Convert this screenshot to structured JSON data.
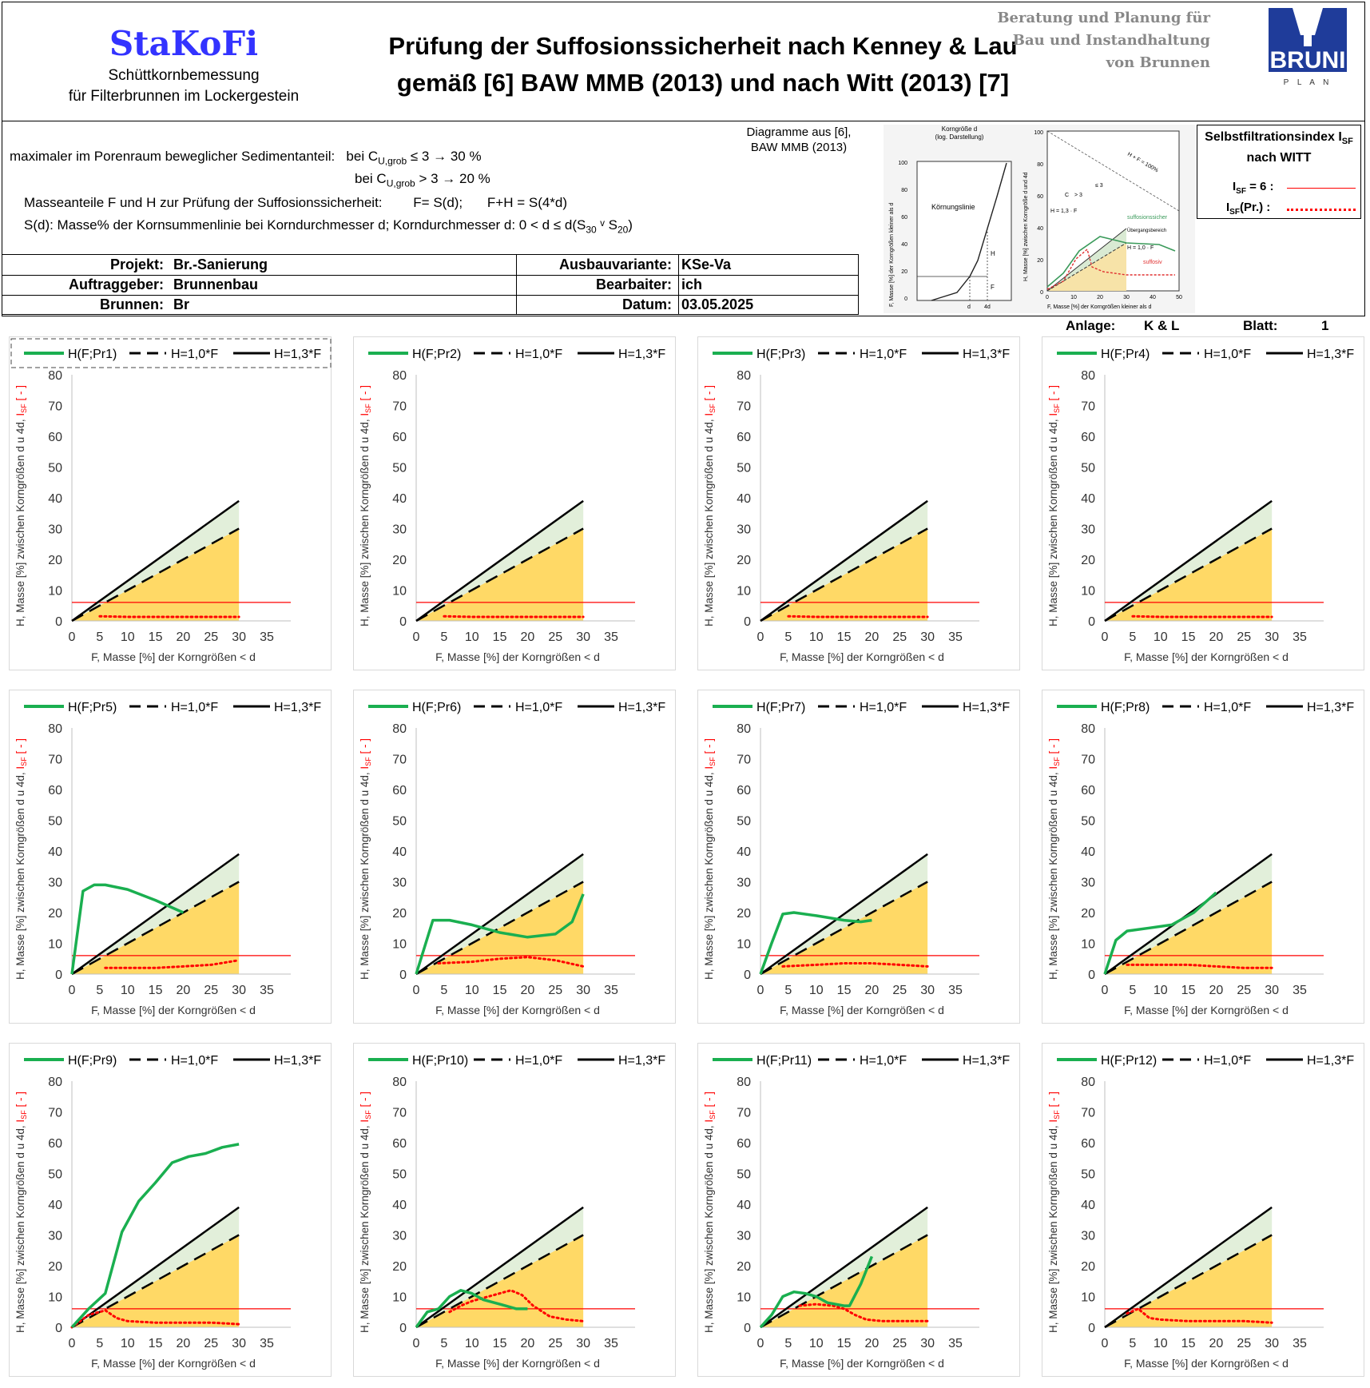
{
  "header": {
    "logo": "StaKoFi",
    "logo_sub1": "Schüttkornbemessung",
    "logo_sub2": "für Filterbrunnen im Lockergestein",
    "title_line1": "Prüfung der Suffosionssicherheit nach Kenney & Lau",
    "title_line2": "gemäß [6] BAW MMB (2013) und nach Witt (2013) [7]",
    "brand_line1": "Beratung und Planung für",
    "brand_line2": "Bau und Instandhaltung",
    "brand_line3": "von Brunnen",
    "brand_logo": "BRUNI",
    "brand_logo_sub": "P L A N"
  },
  "info": {
    "line1_a": "maximaler im Porenraum beweglicher Sedimentanteil:",
    "line1_b": "bei C",
    "line1_sub": "U,grob",
    "line1_c": "≤ 3 → 30 %",
    "line2_a": "bei C",
    "line2_sub": "U,grob",
    "line2_c": "> 3 → 20 %",
    "line3": "Masseanteile F und H zur Prüfung der Suffosionssicherheit:",
    "line3_b": "F= S(d);",
    "line3_c": "F+H = S(4*d)",
    "line4": "S(d): Masse% der Kornsummenlinie bei Korndurchmesser d;  Korndurchmesser d: 0 < d ≤ d(S",
    "line4_s1": "30",
    "line4_mid": " ᵛ S",
    "line4_s2": "20",
    "line4_end": ")",
    "diag_caption1": "Diagramme aus [6],",
    "diag_caption2": "BAW MMB (2013)"
  },
  "reference_diagrams": {
    "left": {
      "top_label1": "Korngröße d",
      "top_label2": "(log. Darstellung)",
      "curve_label": "Körnungslinie",
      "yaxis": "F, Masse [%] der Korngrößen kleiner als d",
      "ticks": [
        "100",
        "80",
        "60",
        "40",
        "20",
        "0"
      ],
      "bottom": [
        "d",
        "4d"
      ],
      "h": "H",
      "f": "F"
    },
    "right": {
      "ticks_y": [
        "100",
        "80",
        "60",
        "40",
        "20",
        "0"
      ],
      "ticks_x": [
        "0",
        "10",
        "20",
        "30",
        "40",
        "50"
      ],
      "xaxis": "F, Masse [%] der Korngrößen kleiner als d",
      "yaxis": "H, Masse [%] zwischen Korngröße d und 4d",
      "hf": "H + F = 100%",
      "cu1": "C",
      "cu2": "> 3",
      "cu3": "≤ 3",
      "h13": "H = 1,3 · F",
      "h10": "H = 1,0 · F",
      "sicher": "suffosionssicher",
      "ueber": "Übergangsbereich",
      "suff": "suffosiv"
    }
  },
  "witt": {
    "title": "Selbstfiltrationsindex  I",
    "title_sub": "SF",
    "title2": "nach WITT",
    "row1": "I",
    "row1_sub": "SF",
    "row1_b": " = 6 :",
    "row2": "I",
    "row2_sub": "SF",
    "row2_b": "(Pr.) :"
  },
  "project": {
    "projekt_label": "Projekt:",
    "projekt": "Br.-Sanierung",
    "auftraggeber_label": "Auftraggeber:",
    "auftraggeber": "Brunnenbau",
    "brunnen_label": "Brunnen:",
    "brunnen": "Br",
    "ausbau_label": "Ausbauvariante:",
    "ausbau": "KSe-Va",
    "bearbeiter_label": "Bearbaiter:",
    "bearbeiter": "ich",
    "datum_label": "Datum:",
    "datum": "03.05.2025",
    "anlage_label": "Anlage:",
    "anlage": "K & L",
    "blatt_label": "Blatt:",
    "blatt": "1"
  },
  "colors": {
    "green": "#1aaf50",
    "green2": "#8dc63f",
    "isf": "#ff0000",
    "zone_orange": "#ffd966",
    "zone_green": "#e2efda"
  },
  "chart_data": [
    {
      "type": "line",
      "legend": [
        "H(F;Pr1)",
        "H=1,0*F",
        "H=1,3*F"
      ],
      "xlabel": "F, Masse [%] der Korngrößen < d",
      "ylabel": "H, Masse [%] zwischen Korngrößen d u 4d, ",
      "ylabel_red": "I",
      "ylabel_red_sub": "SF",
      "ylabel_red_end": " [ - ]",
      "xlim": [
        0,
        35
      ],
      "ylim": [
        0,
        80
      ],
      "xticks": [
        0,
        5,
        10,
        15,
        20,
        25,
        30,
        35
      ],
      "yticks": [
        0,
        10,
        20,
        30,
        40,
        50,
        60,
        70,
        80
      ],
      "h": [],
      "isf": [
        [
          5,
          1.5
        ],
        [
          10,
          1.3
        ],
        [
          15,
          1.3
        ],
        [
          20,
          1.3
        ],
        [
          25,
          1.3
        ],
        [
          30,
          1.3
        ]
      ]
    },
    {
      "type": "line",
      "legend": [
        "H(F;Pr2)",
        "H=1,0*F",
        "H=1,3*F"
      ],
      "xlabel": "F, Masse [%] der Korngrößen < d",
      "ylabel": "H, Masse [%] zwischen Korngrößen d u 4d, ",
      "ylabel_red": "I",
      "ylabel_red_sub": "SF",
      "ylabel_red_end": " [ - ]",
      "xlim": [
        0,
        35
      ],
      "ylim": [
        0,
        80
      ],
      "xticks": [
        0,
        5,
        10,
        15,
        20,
        25,
        30,
        35
      ],
      "yticks": [
        0,
        10,
        20,
        30,
        40,
        50,
        60,
        70,
        80
      ],
      "h": [],
      "isf": [
        [
          5,
          1.5
        ],
        [
          10,
          1.3
        ],
        [
          15,
          1.3
        ],
        [
          20,
          1.3
        ],
        [
          25,
          1.3
        ],
        [
          30,
          1.3
        ]
      ]
    },
    {
      "type": "line",
      "legend": [
        "H(F;Pr3)",
        "H=1,0*F",
        "H=1,3*F"
      ],
      "xlabel": "F, Masse [%] der Korngrößen < d",
      "ylabel": "H, Masse [%] zwischen Korngrößen d u 4d, ",
      "ylabel_red": "I",
      "ylabel_red_sub": "SF",
      "ylabel_red_end": " [ - ]",
      "xlim": [
        0,
        35
      ],
      "ylim": [
        0,
        80
      ],
      "xticks": [
        0,
        5,
        10,
        15,
        20,
        25,
        30,
        35
      ],
      "yticks": [
        0,
        10,
        20,
        30,
        40,
        50,
        60,
        70,
        80
      ],
      "h": [],
      "isf": [
        [
          5,
          1.5
        ],
        [
          10,
          1.3
        ],
        [
          15,
          1.3
        ],
        [
          20,
          1.3
        ],
        [
          25,
          1.3
        ],
        [
          30,
          1.3
        ]
      ]
    },
    {
      "type": "line",
      "legend": [
        "H(F;Pr4)",
        "H=1,0*F",
        "H=1,3*F"
      ],
      "xlabel": "F, Masse [%] der Korngrößen < d",
      "ylabel": "H, Masse [%] zwischen Korngrößen d u 4d, ",
      "ylabel_red": "I",
      "ylabel_red_sub": "SF",
      "ylabel_red_end": " [ - ]",
      "xlim": [
        0,
        35
      ],
      "ylim": [
        0,
        80
      ],
      "xticks": [
        0,
        5,
        10,
        15,
        20,
        25,
        30,
        35
      ],
      "yticks": [
        0,
        10,
        20,
        30,
        40,
        50,
        60,
        70,
        80
      ],
      "h": [],
      "isf": [
        [
          5,
          1.5
        ],
        [
          10,
          1.3
        ],
        [
          15,
          1.3
        ],
        [
          20,
          1.3
        ],
        [
          25,
          1.3
        ],
        [
          30,
          1.3
        ]
      ]
    },
    {
      "type": "line",
      "legend": [
        "H(F;Pr5)",
        "H=1,0*F",
        "H=1,3*F"
      ],
      "xlabel": "F, Masse [%] der Korngrößen < d",
      "ylabel": "H, Masse [%] zwischen Korngrößen d u 4d, ",
      "ylabel_red": "I",
      "ylabel_red_sub": "SF",
      "ylabel_red_end": " [ - ]",
      "xlim": [
        0,
        35
      ],
      "ylim": [
        0,
        80
      ],
      "xticks": [
        0,
        5,
        10,
        15,
        20,
        25,
        30,
        35
      ],
      "yticks": [
        0,
        10,
        20,
        30,
        40,
        50,
        60,
        70,
        80
      ],
      "h": [
        [
          0,
          0
        ],
        [
          2,
          27
        ],
        [
          4,
          29
        ],
        [
          6,
          29
        ],
        [
          10,
          27.5
        ],
        [
          15,
          24
        ],
        [
          20,
          20
        ]
      ],
      "isf": [
        [
          6,
          2
        ],
        [
          10,
          2
        ],
        [
          15,
          2
        ],
        [
          20,
          2.5
        ],
        [
          25,
          3
        ],
        [
          30,
          4.5
        ]
      ]
    },
    {
      "type": "line",
      "legend": [
        "H(F;Pr6)",
        "H=1,0*F",
        "H=1,3*F"
      ],
      "xlabel": "F, Masse [%] der Korngrößen < d",
      "ylabel": "H, Masse [%] zwischen Korngrößen d u 4d, ",
      "ylabel_red": "I",
      "ylabel_red_sub": "SF",
      "ylabel_red_end": " [ - ]",
      "xlim": [
        0,
        35
      ],
      "ylim": [
        0,
        80
      ],
      "xticks": [
        0,
        5,
        10,
        15,
        20,
        25,
        30,
        35
      ],
      "yticks": [
        0,
        10,
        20,
        30,
        40,
        50,
        60,
        70,
        80
      ],
      "h": [
        [
          0,
          0
        ],
        [
          3,
          17.5
        ],
        [
          6,
          17.5
        ],
        [
          10,
          16
        ],
        [
          15,
          13.5
        ],
        [
          20,
          12
        ],
        [
          25,
          13
        ],
        [
          28,
          17
        ],
        [
          30,
          26
        ]
      ],
      "isf": [
        [
          4,
          3.5
        ],
        [
          10,
          4
        ],
        [
          15,
          5
        ],
        [
          20,
          5.5
        ],
        [
          25,
          4.5
        ],
        [
          30,
          2.5
        ]
      ]
    },
    {
      "type": "line",
      "legend": [
        "H(F;Pr7)",
        "H=1,0*F",
        "H=1,3*F"
      ],
      "xlabel": "F, Masse [%] der Korngrößen < d",
      "ylabel": "H, Masse [%] zwischen Korngrößen d u 4d, ",
      "ylabel_red": "I",
      "ylabel_red_sub": "SF",
      "ylabel_red_end": " [ - ]",
      "xlim": [
        0,
        35
      ],
      "ylim": [
        0,
        80
      ],
      "xticks": [
        0,
        5,
        10,
        15,
        20,
        25,
        30,
        35
      ],
      "yticks": [
        0,
        10,
        20,
        30,
        40,
        50,
        60,
        70,
        80
      ],
      "h": [
        [
          0,
          0
        ],
        [
          2,
          10
        ],
        [
          4,
          19.5
        ],
        [
          6,
          20
        ],
        [
          10,
          19
        ],
        [
          15,
          17.5
        ],
        [
          18,
          17
        ],
        [
          20,
          17.5
        ]
      ],
      "isf": [
        [
          4,
          2.5
        ],
        [
          10,
          3
        ],
        [
          15,
          3.5
        ],
        [
          20,
          3.5
        ],
        [
          25,
          3
        ],
        [
          30,
          2.5
        ]
      ]
    },
    {
      "type": "line",
      "legend": [
        "H(F;Pr8)",
        "H=1,0*F",
        "H=1,3*F"
      ],
      "xlabel": "F, Masse [%] der Korngrößen < d",
      "ylabel": "H, Masse [%] zwischen Korngrößen d u 4d, ",
      "ylabel_red": "I",
      "ylabel_red_sub": "SF",
      "ylabel_red_end": " [ - ]",
      "xlim": [
        0,
        35
      ],
      "ylim": [
        0,
        80
      ],
      "xticks": [
        0,
        5,
        10,
        15,
        20,
        25,
        30,
        35
      ],
      "yticks": [
        0,
        10,
        20,
        30,
        40,
        50,
        60,
        70,
        80
      ],
      "h": [
        [
          0,
          0
        ],
        [
          2,
          11
        ],
        [
          4,
          14
        ],
        [
          8,
          15
        ],
        [
          12,
          16
        ],
        [
          16,
          20
        ],
        [
          20,
          26.5
        ]
      ],
      "isf": [
        [
          4,
          3
        ],
        [
          10,
          3
        ],
        [
          15,
          3
        ],
        [
          20,
          2.5
        ],
        [
          25,
          2
        ],
        [
          30,
          2
        ]
      ]
    },
    {
      "type": "line",
      "legend": [
        "H(F;Pr9)",
        "H=1,0*F",
        "H=1,3*F"
      ],
      "xlabel": "F, Masse [%] der Korngrößen < d",
      "ylabel": "H, Masse [%] zwischen Korngrößen d u 4d, ",
      "ylabel_red": "I",
      "ylabel_red_sub": "SF",
      "ylabel_red_end": " [ - ]",
      "xlim": [
        0,
        35
      ],
      "ylim": [
        0,
        80
      ],
      "xticks": [
        0,
        5,
        10,
        15,
        20,
        25,
        30,
        35
      ],
      "yticks": [
        0,
        10,
        20,
        30,
        40,
        50,
        60,
        70,
        80
      ],
      "h": [
        [
          0,
          0
        ],
        [
          3,
          6
        ],
        [
          6,
          11
        ],
        [
          9,
          31
        ],
        [
          12,
          41
        ],
        [
          15,
          47
        ],
        [
          18,
          53.5
        ],
        [
          21,
          55.5
        ],
        [
          24,
          56.5
        ],
        [
          27,
          58.5
        ],
        [
          30,
          59.5
        ]
      ],
      "isf": [
        [
          0,
          0
        ],
        [
          3,
          4
        ],
        [
          6,
          5.5
        ],
        [
          8,
          3
        ],
        [
          10,
          2
        ],
        [
          15,
          1.5
        ],
        [
          20,
          1.5
        ],
        [
          25,
          1.5
        ],
        [
          30,
          1
        ]
      ]
    },
    {
      "type": "line",
      "legend": [
        "H(F;Pr10)",
        "H=1,0*F",
        "H=1,3*F"
      ],
      "xlabel": "F, Masse [%] der Korngrößen < d",
      "ylabel": "H, Masse [%] zwischen Korngrößen d u 4d, ",
      "ylabel_red": "I",
      "ylabel_red_sub": "SF",
      "ylabel_red_end": " [ - ]",
      "xlim": [
        0,
        35
      ],
      "ylim": [
        0,
        80
      ],
      "xticks": [
        0,
        5,
        10,
        15,
        20,
        25,
        30,
        35
      ],
      "yticks": [
        0,
        10,
        20,
        30,
        40,
        50,
        60,
        70,
        80
      ],
      "h": [
        [
          0,
          0
        ],
        [
          2,
          5
        ],
        [
          4,
          6
        ],
        [
          6,
          10
        ],
        [
          8,
          12
        ],
        [
          10,
          11
        ],
        [
          12,
          9
        ],
        [
          15,
          7.5
        ],
        [
          18,
          6
        ],
        [
          20,
          6
        ]
      ],
      "isf": [
        [
          6,
          5
        ],
        [
          8,
          7
        ],
        [
          10,
          8.5
        ],
        [
          12,
          9.5
        ],
        [
          15,
          11
        ],
        [
          17,
          12
        ],
        [
          19,
          10.5
        ],
        [
          21,
          7
        ],
        [
          24,
          3.5
        ],
        [
          27,
          2.5
        ],
        [
          30,
          2
        ]
      ]
    },
    {
      "type": "line",
      "legend": [
        "H(F;Pr11)",
        "H=1,0*F",
        "H=1,3*F"
      ],
      "xlabel": "F, Masse [%] der Korngrößen < d",
      "ylabel": "H, Masse [%] zwischen Korngrößen d u 4d, ",
      "ylabel_red": "I",
      "ylabel_red_sub": "SF",
      "ylabel_red_end": " [ - ]",
      "xlim": [
        0,
        35
      ],
      "ylim": [
        0,
        80
      ],
      "xticks": [
        0,
        5,
        10,
        15,
        20,
        25,
        30,
        35
      ],
      "yticks": [
        0,
        10,
        20,
        30,
        40,
        50,
        60,
        70,
        80
      ],
      "h": [
        [
          0,
          0
        ],
        [
          2,
          4
        ],
        [
          4,
          10
        ],
        [
          6,
          11.5
        ],
        [
          8,
          11
        ],
        [
          10,
          10
        ],
        [
          12,
          8
        ],
        [
          15,
          7
        ],
        [
          16,
          7
        ],
        [
          18,
          14
        ],
        [
          20,
          23
        ]
      ],
      "isf": [
        [
          7,
          7
        ],
        [
          10,
          7.5
        ],
        [
          13,
          7
        ],
        [
          15,
          6
        ],
        [
          17,
          4
        ],
        [
          19,
          2.5
        ],
        [
          22,
          2
        ],
        [
          25,
          2
        ],
        [
          30,
          2
        ]
      ]
    },
    {
      "type": "line",
      "legend": [
        "H(F;Pr12)",
        "H=1,0*F",
        "H=1,3*F"
      ],
      "xlabel": "F, Masse [%] der Korngrößen < d",
      "ylabel": "H, Masse [%] zwischen Korngrößen d u 4d, ",
      "ylabel_red": "I",
      "ylabel_red_sub": "SF",
      "ylabel_red_end": " [ - ]",
      "xlim": [
        0,
        35
      ],
      "ylim": [
        0,
        80
      ],
      "xticks": [
        0,
        5,
        10,
        15,
        20,
        25,
        30,
        35
      ],
      "yticks": [
        0,
        10,
        20,
        30,
        40,
        50,
        60,
        70,
        80
      ],
      "h": [],
      "isf": [
        [
          4,
          4.5
        ],
        [
          6,
          6
        ],
        [
          8,
          3
        ],
        [
          10,
          2.5
        ],
        [
          15,
          2
        ],
        [
          20,
          2
        ],
        [
          25,
          2
        ],
        [
          30,
          1.5
        ]
      ]
    }
  ]
}
